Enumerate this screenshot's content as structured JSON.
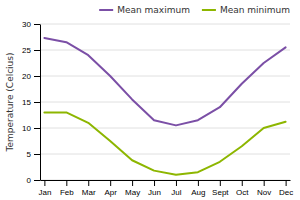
{
  "chart_data": {
    "type": "line",
    "categories": [
      "Jan",
      "Feb",
      "Mar",
      "Apr",
      "May",
      "Jun",
      "Jul",
      "Aug",
      "Sept",
      "Oct",
      "Nov",
      "Dec"
    ],
    "series": [
      {
        "name": "Mean maximum",
        "color": "#7b4fa6",
        "values": [
          27.3,
          26.5,
          24.0,
          20.0,
          15.5,
          11.5,
          10.5,
          11.5,
          14.0,
          18.5,
          22.5,
          25.5
        ]
      },
      {
        "name": "Mean minimum",
        "color": "#8db600",
        "values": [
          13.0,
          13.0,
          11.0,
          7.5,
          3.8,
          1.8,
          1.0,
          1.5,
          3.5,
          6.5,
          10.0,
          11.2
        ]
      }
    ],
    "ylabel": "Temperature (Celcius)",
    "ylim": [
      0,
      30
    ],
    "yticks": [
      0,
      5,
      10,
      15,
      20,
      25,
      30
    ],
    "grid": true,
    "legend": "upper right"
  }
}
